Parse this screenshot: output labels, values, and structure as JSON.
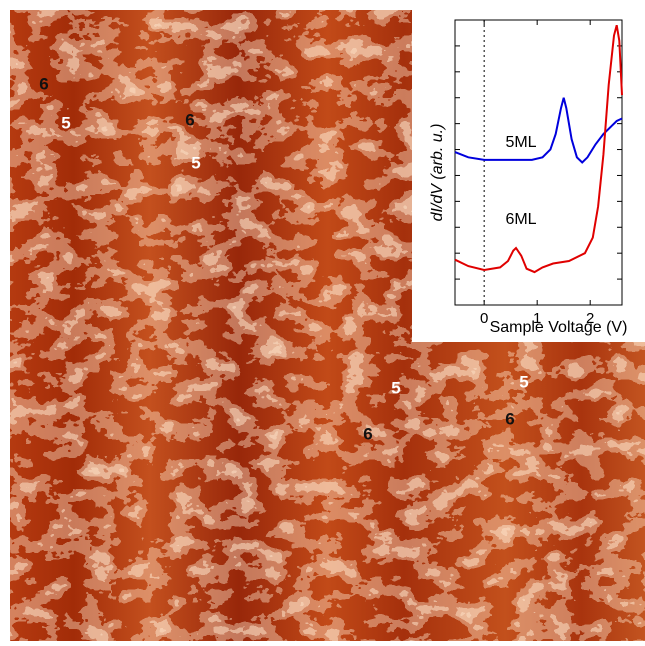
{
  "image": {
    "labels": [
      "6",
      "5",
      "6",
      "5",
      "5",
      "6",
      "5",
      "6"
    ]
  },
  "chart_data": {
    "type": "line",
    "xlabel": "Sample Voltage (V)",
    "ylabel": "dI/dV (arb. u.)",
    "xlim": [
      -0.55,
      2.6
    ],
    "xticks": [
      0,
      1,
      2
    ],
    "ylim": [
      0,
      11
    ],
    "yticks": [
      1,
      2,
      3,
      4,
      5,
      6,
      7,
      8,
      9,
      10
    ],
    "series": [
      {
        "name": "5ML",
        "color": "#0000dd",
        "x": [
          -0.55,
          -0.3,
          0,
          0.3,
          0.6,
          0.9,
          1.1,
          1.25,
          1.35,
          1.45,
          1.5,
          1.55,
          1.65,
          1.75,
          1.85,
          1.95,
          2.1,
          2.25,
          2.4,
          2.5,
          2.6
        ],
        "values": [
          5.9,
          5.7,
          5.6,
          5.6,
          5.6,
          5.6,
          5.7,
          6.0,
          6.6,
          7.6,
          8.0,
          7.6,
          6.4,
          5.7,
          5.5,
          5.7,
          6.2,
          6.6,
          6.9,
          7.1,
          7.2
        ]
      },
      {
        "name": "6ML",
        "color": "#e00000",
        "x": [
          -0.55,
          -0.3,
          0,
          0.3,
          0.45,
          0.55,
          0.6,
          0.7,
          0.8,
          0.95,
          1.1,
          1.3,
          1.6,
          1.9,
          2.05,
          2.15,
          2.25,
          2.35,
          2.45,
          2.5,
          2.55,
          2.6
        ],
        "values": [
          1.75,
          1.5,
          1.35,
          1.45,
          1.7,
          2.1,
          2.2,
          1.9,
          1.4,
          1.27,
          1.45,
          1.6,
          1.7,
          2.0,
          2.6,
          3.8,
          5.8,
          8.5,
          10.4,
          10.8,
          10.2,
          8.1
        ]
      }
    ]
  }
}
